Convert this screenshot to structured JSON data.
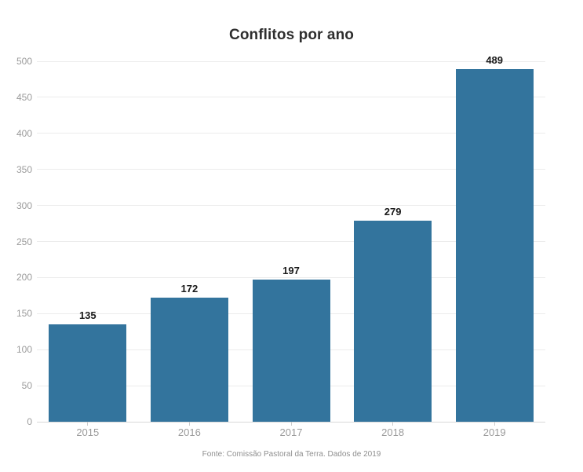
{
  "chart_data": {
    "type": "bar",
    "title": "Conflitos por ano",
    "categories": [
      "2015",
      "2016",
      "2017",
      "2018",
      "2019"
    ],
    "values": [
      135,
      172,
      197,
      279,
      489
    ],
    "value_labels_shown": true,
    "xlabel": "",
    "ylabel": "",
    "ylim": [
      0,
      500
    ],
    "ytick_step": 50,
    "yticks": [
      0,
      50,
      100,
      150,
      200,
      250,
      300,
      350,
      400,
      450,
      500
    ],
    "grid": "horizontal",
    "legend": "none",
    "bar_color": "#33749D"
  },
  "theme": {
    "background": "#ffffff",
    "title_color": "#2e2e2e",
    "axis_text_color": "#9b9b9b",
    "gridline_color": "#ececec",
    "baseline_color": "#d9d9d9",
    "tick_color": "#cccccc",
    "value_label_color": "#1a1a1a",
    "footer_color": "#8f8f8f"
  },
  "footer": {
    "source_text": "Fonte: Comissão Pastoral da Terra. Dados de 2019"
  }
}
